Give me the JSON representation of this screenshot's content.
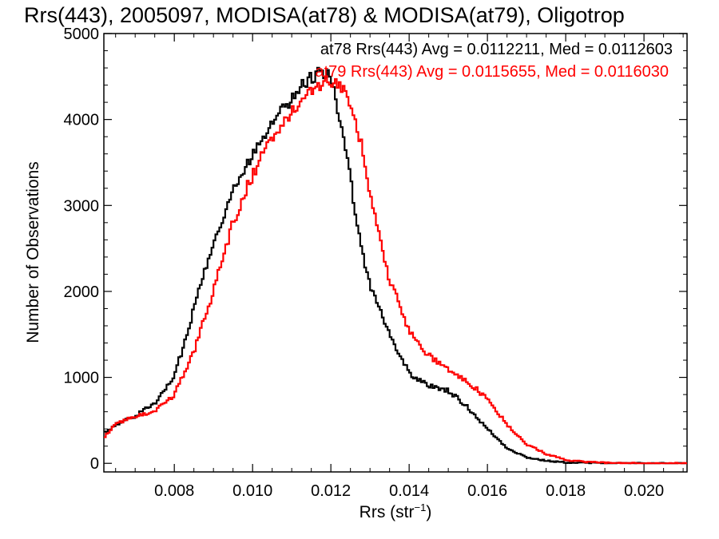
{
  "chart_data": {
    "type": "line",
    "step": true,
    "title": "Rrs(443), 2005097, MODISA(at78) & MODISA(at79), Oligotrop",
    "xlabel": "Rrs (str",
    "xlabel_sup": "−1",
    "xlabel_close": ")",
    "ylabel": "Number of Observations",
    "xlim": [
      0.0062,
      0.0211
    ],
    "ylim": [
      -100,
      5000
    ],
    "x_ticks": [
      0.008,
      0.01,
      0.012,
      0.014,
      0.016,
      0.018,
      0.02
    ],
    "x_tick_labels": [
      "0.008",
      "0.010",
      "0.012",
      "0.014",
      "0.016",
      "0.018",
      "0.020"
    ],
    "y_ticks": [
      0,
      1000,
      2000,
      3000,
      4000,
      5000
    ],
    "y_tick_labels": [
      "0",
      "1000",
      "2000",
      "3000",
      "4000",
      "5000"
    ],
    "grid": false,
    "legend_position": "top-right",
    "legend": [
      {
        "text": "at78 Rrs(443) Avg = 0.0112211, Med = 0.0112603",
        "color": "#000000"
      },
      {
        "text": "at79 Rrs(443) Avg = 0.0115655, Med = 0.0116030",
        "color": "#ff0000"
      }
    ],
    "series": [
      {
        "color": "#000000",
        "x": [
          0.0062,
          0.0065,
          0.007,
          0.0075,
          0.008,
          0.0085,
          0.009,
          0.0095,
          0.01,
          0.0105,
          0.011,
          0.0115,
          0.0118,
          0.012,
          0.0122,
          0.0125,
          0.0128,
          0.013,
          0.0133,
          0.0135,
          0.014,
          0.0145,
          0.015,
          0.0155,
          0.016,
          0.0165,
          0.017,
          0.0175,
          0.018,
          0.0185,
          0.019,
          0.02,
          0.0211
        ],
        "values": [
          350,
          450,
          550,
          700,
          1000,
          1800,
          2600,
          3150,
          3600,
          4000,
          4250,
          4500,
          4560,
          4480,
          4050,
          3300,
          2500,
          2050,
          1750,
          1500,
          1050,
          900,
          850,
          650,
          400,
          180,
          70,
          30,
          10,
          5,
          2,
          0,
          0
        ]
      },
      {
        "color": "#ff0000",
        "x": [
          0.0062,
          0.0065,
          0.007,
          0.0075,
          0.008,
          0.0085,
          0.009,
          0.0095,
          0.01,
          0.0105,
          0.011,
          0.0115,
          0.012,
          0.0122,
          0.0125,
          0.0128,
          0.013,
          0.0133,
          0.0135,
          0.014,
          0.0145,
          0.015,
          0.0155,
          0.016,
          0.0165,
          0.017,
          0.0175,
          0.018,
          0.0185,
          0.019,
          0.0195,
          0.02,
          0.0211
        ],
        "values": [
          300,
          450,
          550,
          600,
          800,
          1300,
          2000,
          2800,
          3350,
          3800,
          4100,
          4350,
          4450,
          4400,
          4200,
          3650,
          3100,
          2500,
          2150,
          1550,
          1250,
          1100,
          950,
          750,
          450,
          220,
          110,
          40,
          15,
          8,
          3,
          0,
          0
        ]
      }
    ]
  }
}
